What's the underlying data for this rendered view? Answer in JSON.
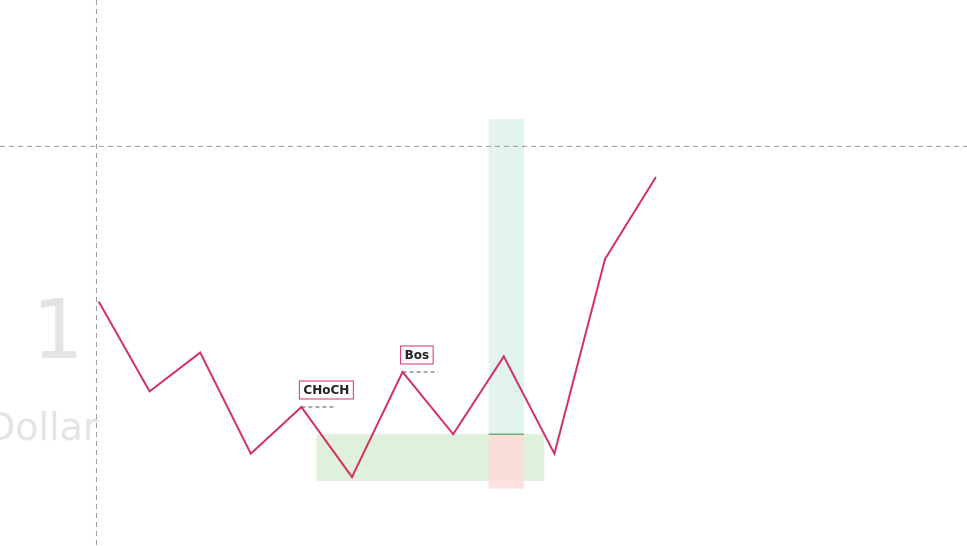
{
  "watermark": {
    "number": "1",
    "text": "Dollar",
    "color": "#e4e4e4"
  },
  "chart_data": {
    "type": "line",
    "title": "",
    "xlabel": "",
    "ylabel": "",
    "grid": false,
    "x": [
      0,
      1,
      2,
      3,
      4,
      5,
      6,
      7,
      8,
      9,
      10,
      11
    ],
    "ylim": [
      0,
      100
    ],
    "series": [
      {
        "color": "#d23164",
        "values": [
          65,
          42,
          52,
          26,
          38,
          20,
          47,
          31,
          51,
          26,
          76,
          97
        ]
      }
    ],
    "annotations": [
      {
        "label": "CHoCH",
        "at_index": 4,
        "level": 38,
        "extend_to": 4.65
      },
      {
        "label": "Bos",
        "at_index": 6,
        "level": 47,
        "extend_to": 6.7
      }
    ],
    "zones": {
      "demand": {
        "x_from": 4.3,
        "x_to": 8.8,
        "y_from": 19,
        "y_to": 31,
        "color": "#dff0db"
      },
      "position": {
        "x_from": 7.7,
        "x_to": 8.4,
        "entry": 31,
        "target": 112,
        "stop": 17,
        "profit_color": "#e1f2ee",
        "loss_color": "#ffd9d9",
        "entry_color": "#4a9a58"
      }
    },
    "crosshair": {
      "x": -0.05,
      "y": 105,
      "color": "#9a9a9a"
    },
    "label_border_color": "#d23164",
    "annotation_line_color": "#555555"
  }
}
